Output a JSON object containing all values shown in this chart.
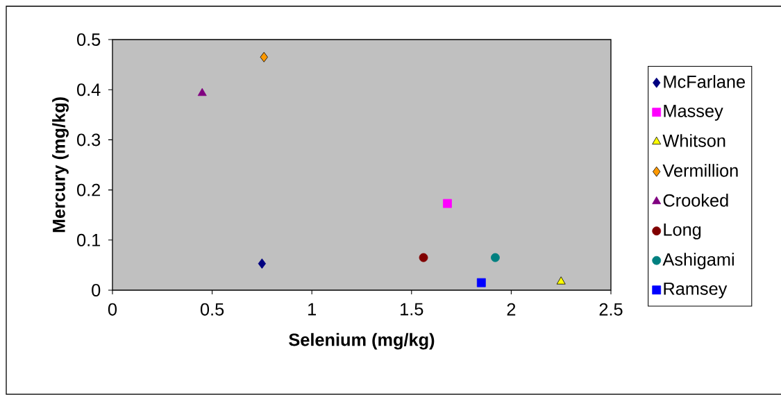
{
  "chart_data": {
    "type": "scatter",
    "xlabel": "Selenium (mg/kg)",
    "ylabel": "Mercury (mg/kg)",
    "xlim": [
      0,
      2.5
    ],
    "ylim": [
      0,
      0.5
    ],
    "xticks": [
      0,
      0.5,
      1,
      1.5,
      2,
      2.5
    ],
    "yticks": [
      0,
      0.1,
      0.2,
      0.3,
      0.4,
      0.5
    ],
    "grid": false,
    "legend": "right",
    "series": [
      {
        "name": "McFarlane",
        "color": "#000080",
        "marker": "diamond",
        "x": [
          0.75
        ],
        "values": [
          0.053
        ]
      },
      {
        "name": "Massey",
        "color": "#ff00ff",
        "marker": "square",
        "x": [
          1.68
        ],
        "values": [
          0.173
        ]
      },
      {
        "name": "Whitson",
        "color": "#ffff00",
        "marker": "triangle",
        "x": [
          2.25
        ],
        "values": [
          0.017
        ]
      },
      {
        "name": "Vermillion",
        "color": "#ff9900",
        "marker": "diamond",
        "x": [
          0.76
        ],
        "values": [
          0.465
        ]
      },
      {
        "name": "Crooked",
        "color": "#800080",
        "marker": "triangle",
        "x": [
          0.45
        ],
        "values": [
          0.393
        ]
      },
      {
        "name": "Long",
        "color": "#800000",
        "marker": "circle",
        "x": [
          1.56
        ],
        "values": [
          0.065
        ]
      },
      {
        "name": "Ashigami",
        "color": "#008080",
        "marker": "circle",
        "x": [
          1.92
        ],
        "values": [
          0.065
        ]
      },
      {
        "name": "Ramsey",
        "color": "#0000ff",
        "marker": "square",
        "x": [
          1.85
        ],
        "values": [
          0.015
        ]
      }
    ]
  }
}
